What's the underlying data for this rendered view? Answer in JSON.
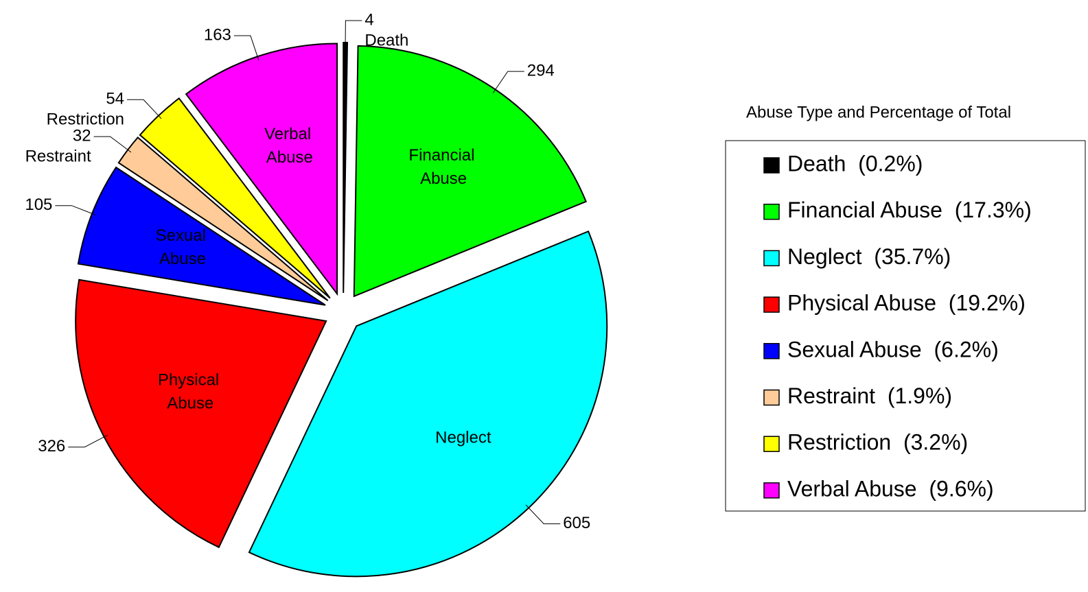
{
  "chart_data": {
    "type": "pie",
    "categories": [
      "Death",
      "Financial Abuse",
      "Neglect",
      "Physical Abuse",
      "Sexual Abuse",
      "Restraint",
      "Restriction",
      "Verbal Abuse"
    ],
    "values": [
      4,
      294,
      605,
      326,
      105,
      32,
      54,
      163
    ],
    "colors": [
      "#000000",
      "#00ff00",
      "#00ffff",
      "#ff0000",
      "#0000ff",
      "#ffcc99",
      "#ffff00",
      "#ff00ff"
    ],
    "legend_title": "Abuse Type and Percentage of Total",
    "legend_labels": [
      "Death  (0.2%)",
      "Financial Abuse  (17.3%)",
      "Neglect  (35.7%)",
      "Physical Abuse  (19.2%)",
      "Sexual Abuse  (6.2%)",
      "Restraint  (1.9%)",
      "Restriction  (3.2%)",
      "Verbal Abuse  (9.6%)"
    ],
    "legend_position": "right"
  }
}
